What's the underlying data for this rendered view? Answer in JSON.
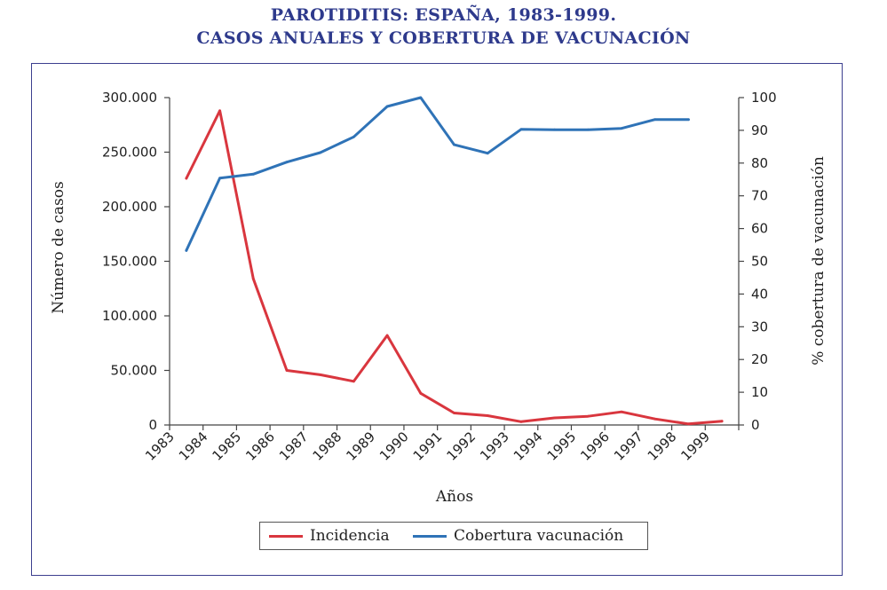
{
  "title_line1": "PAROTIDITIS: ESPAÑA, 1983-1999.",
  "title_line2": "CASOS ANUALES Y COBERTURA DE VACUNACIÓN",
  "chart_data": {
    "type": "line",
    "xlabel": "Años",
    "ylabel_left": "Número de casos",
    "ylabel_right": "% cobertura de vacunación",
    "categories": [
      "1983",
      "1984",
      "1985",
      "1986",
      "1987",
      "1988",
      "1989",
      "1990",
      "1991",
      "1992",
      "1993",
      "1994",
      "1995",
      "1996",
      "1997",
      "1998",
      "1999"
    ],
    "left_axis": {
      "min": 0,
      "max": 300000,
      "ticks": [
        0,
        50000,
        100000,
        150000,
        200000,
        250000,
        300000
      ],
      "tick_labels": [
        "0",
        "50.000",
        "100.000",
        "150.000",
        "200.000",
        "250.000",
        "300.000"
      ]
    },
    "right_axis": {
      "min": 0,
      "max": 100,
      "ticks": [
        0,
        10,
        20,
        30,
        40,
        50,
        60,
        70,
        80,
        90,
        100
      ],
      "tick_labels": [
        "0",
        "10",
        "20",
        "30",
        "40",
        "50",
        "60",
        "70",
        "80",
        "90",
        "100"
      ]
    },
    "series": [
      {
        "name": "Incidencia",
        "axis": "left",
        "color": "#d9363e",
        "values": [
          226000,
          288000,
          134000,
          50000,
          46000,
          40000,
          82000,
          29000,
          11000,
          8500,
          3000,
          6500,
          8000,
          12000,
          5500,
          1000,
          3500
        ]
      },
      {
        "name": "Cobertura vacunación",
        "axis": "right",
        "color": "#2f73b7",
        "values": [
          53.3,
          75.4,
          76.6,
          80.3,
          83.2,
          88.0,
          97.3,
          100,
          85.6,
          83.0,
          90.3,
          90.2,
          90.2,
          90.6,
          93.3,
          93.3,
          null
        ]
      }
    ],
    "legend_position": "bottom",
    "grid": false
  }
}
